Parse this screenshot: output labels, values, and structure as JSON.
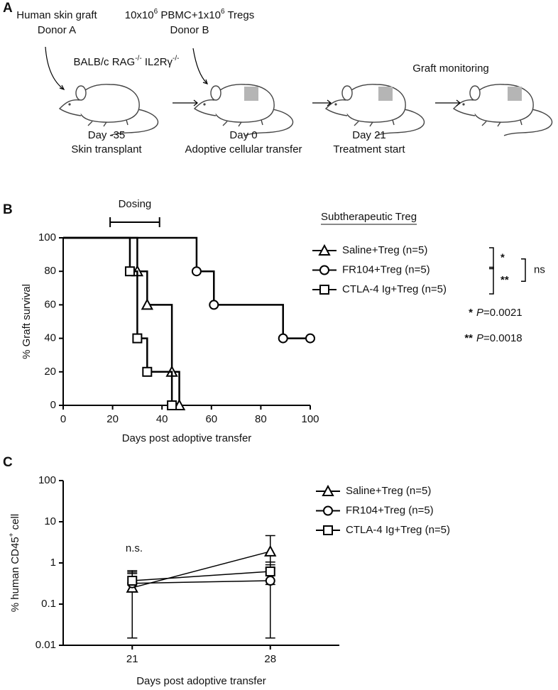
{
  "diagram": {
    "label": "A",
    "donor_a": [
      "Human skin graft",
      "Donor A"
    ],
    "cells": [
      {
        "text": "10x10"
      },
      {
        "text": "6",
        "sup": true
      },
      {
        "text": " PBMC+1x10"
      },
      {
        "text": "6",
        "sup": true
      },
      {
        "text": " Tregs"
      }
    ],
    "donor_b": "Donor B",
    "strain": [
      {
        "text": "BALB/c RAG"
      },
      {
        "text": "-/-",
        "sup": true
      },
      {
        "text": " IL2Rγ"
      },
      {
        "text": "-/-",
        "sup": true
      }
    ],
    "monitoring": "Graft monitoring",
    "steps": [
      {
        "day": "Day -35",
        "event": "Skin transplant"
      },
      {
        "day": "Day 0",
        "event": "Adoptive cellular transfer"
      },
      {
        "day": "Day 21",
        "event": "Treatment start"
      }
    ]
  },
  "chart_data": [
    {
      "type": "step",
      "label": "B",
      "xlabel": "Days post adoptive transfer",
      "ylabel": "% Graft survival",
      "xlim": [
        0,
        100
      ],
      "xticks": [
        0,
        20,
        40,
        60,
        80,
        100
      ],
      "ylim": [
        0,
        100
      ],
      "yticks": [
        0,
        20,
        40,
        60,
        80,
        100
      ],
      "dosing": {
        "label": "Dosing",
        "x": [
          19,
          39
        ]
      },
      "legend_title": "Subtherapeutic Treg",
      "series": [
        {
          "name": "Saline+Treg (n=5)",
          "marker": "triangle",
          "color": "#000000",
          "x": [
            0,
            30,
            34,
            44,
            47
          ],
          "values": [
            100,
            80,
            60,
            20,
            0
          ]
        },
        {
          "name": "FR104+Treg (n=5)",
          "marker": "circle",
          "color": "#000000",
          "x": [
            0,
            54,
            61,
            89,
            100
          ],
          "values": [
            100,
            80,
            60,
            40,
            40
          ]
        },
        {
          "name": "CTLA-4 Ig+Treg (n=5)",
          "marker": "square",
          "color": "#000000",
          "x": [
            0,
            27,
            30,
            34,
            44
          ],
          "values": [
            100,
            80,
            40,
            20,
            0
          ]
        }
      ],
      "comparisons": [
        {
          "label": "*",
          "rows": [
            0,
            1
          ]
        },
        {
          "label": "**",
          "rows": [
            1,
            2
          ]
        },
        {
          "label": "ns",
          "rows": [
            0,
            2
          ]
        }
      ],
      "p_values": [
        {
          "stars": "*",
          "italic": "P",
          "text": "=0.0021"
        },
        {
          "stars": "**",
          "italic": "P",
          "text": "=0.0018"
        }
      ]
    },
    {
      "type": "line",
      "label": "C",
      "xlabel": "Days post adoptive transfer",
      "ylabel": [
        {
          "text": "% human CD45"
        },
        {
          "text": "+",
          "sup": true
        },
        {
          "text": " cell"
        }
      ],
      "log_y": true,
      "x": [
        21,
        28
      ],
      "xlim": [
        17.5,
        31.5
      ],
      "xticks": [
        21,
        28
      ],
      "ylim": [
        0.01,
        100
      ],
      "yticks": [
        0.01,
        0.1,
        1,
        10,
        100
      ],
      "annotation": "n.s.",
      "series": [
        {
          "name": "Saline+Treg (n=5)",
          "marker": "triangle",
          "color": "#000000",
          "values": [
            0.25,
            1.9
          ],
          "lower": [
            0.015,
            0.9
          ],
          "upper": [
            0.55,
            4.6
          ]
        },
        {
          "name": "FR104+Treg (n=5)",
          "marker": "circle",
          "color": "#000000",
          "values": [
            0.32,
            0.37
          ],
          "lower": [
            0.015,
            0.015
          ],
          "upper": [
            0.6,
            0.75
          ]
        },
        {
          "name": "CTLA-4 Ig+Treg (n=5)",
          "marker": "square",
          "color": "#000000",
          "values": [
            0.37,
            0.62
          ],
          "lower": [
            0.2,
            0.3
          ],
          "upper": [
            0.65,
            1.05
          ]
        }
      ]
    }
  ]
}
